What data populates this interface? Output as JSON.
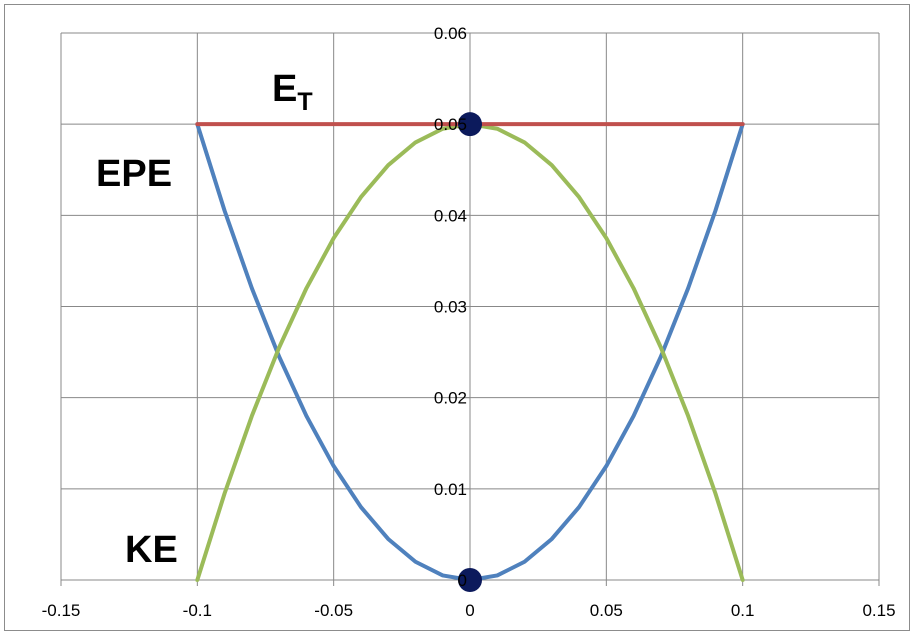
{
  "chart_data": {
    "type": "line",
    "title": "",
    "xlabel": "",
    "ylabel": "",
    "xlim": [
      -0.15,
      0.15
    ],
    "ylim": [
      0,
      0.06
    ],
    "x_ticks": [
      -0.15,
      -0.1,
      -0.05,
      0,
      0.05,
      0.1,
      0.15
    ],
    "x_tick_labels": [
      "-0.15",
      "-0.1",
      "-0.05",
      "0",
      "0.05",
      "0.1",
      "0.15"
    ],
    "y_ticks": [
      0,
      0.01,
      0.02,
      0.03,
      0.04,
      0.05,
      0.06
    ],
    "y_tick_labels": [
      "0",
      "0.01",
      "0.02",
      "0.03",
      "0.04",
      "0.05",
      "0.06"
    ],
    "grid": true,
    "series": [
      {
        "color": "#4f81bd",
        "x": [
          -0.1,
          -0.09,
          -0.08,
          -0.07,
          -0.06,
          -0.05,
          -0.04,
          -0.03,
          -0.02,
          -0.01,
          0,
          0.01,
          0.02,
          0.03,
          0.04,
          0.05,
          0.06,
          0.07,
          0.08,
          0.09,
          0.1
        ],
        "y": [
          0.05,
          0.0405,
          0.032,
          0.0245,
          0.018,
          0.0125,
          0.008,
          0.0045,
          0.002,
          0.0005,
          0,
          0.0005,
          0.002,
          0.0045,
          0.008,
          0.0125,
          0.018,
          0.0245,
          0.032,
          0.0405,
          0.05
        ]
      },
      {
        "color": "#9bbb59",
        "x": [
          -0.1,
          -0.09,
          -0.08,
          -0.07,
          -0.06,
          -0.05,
          -0.04,
          -0.03,
          -0.02,
          -0.01,
          0,
          0.01,
          0.02,
          0.03,
          0.04,
          0.05,
          0.06,
          0.07,
          0.08,
          0.09,
          0.1
        ],
        "y": [
          0,
          0.0095,
          0.018,
          0.0255,
          0.032,
          0.0375,
          0.042,
          0.0455,
          0.048,
          0.0495,
          0.05,
          0.0495,
          0.048,
          0.0455,
          0.042,
          0.0375,
          0.032,
          0.0255,
          0.018,
          0.0095,
          0
        ]
      },
      {
        "color": "#c0504d",
        "x": [
          -0.1,
          0.1
        ],
        "y": [
          0.05,
          0.05
        ]
      }
    ],
    "markers": [
      {
        "x": 0,
        "y": 0.05,
        "color": "#0c1a5c"
      },
      {
        "x": 0,
        "y": 0,
        "color": "#0c1a5c"
      }
    ],
    "annotations": {
      "et_main": "E",
      "et_sub": "T",
      "epe": "EPE",
      "ke": "KE"
    }
  }
}
